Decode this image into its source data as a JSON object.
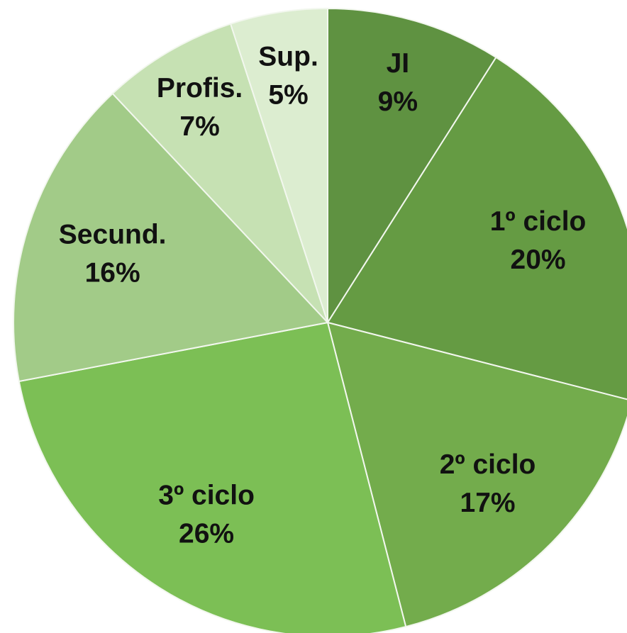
{
  "chart_data": {
    "type": "pie",
    "categories": [
      "JI",
      "1º ciclo",
      "2º ciclo",
      "3º ciclo",
      "Secund.",
      "Profis.",
      "Sup."
    ],
    "values": [
      9,
      20,
      17,
      26,
      16,
      7,
      5
    ],
    "value_labels": [
      "9%",
      "20%",
      "17%",
      "26%",
      "16%",
      "7%",
      "5%"
    ],
    "colors": [
      "#5f9241",
      "#659b43",
      "#73ac4c",
      "#7cbf55",
      "#a2cb88",
      "#c6e1b3",
      "#dcedd0"
    ]
  }
}
